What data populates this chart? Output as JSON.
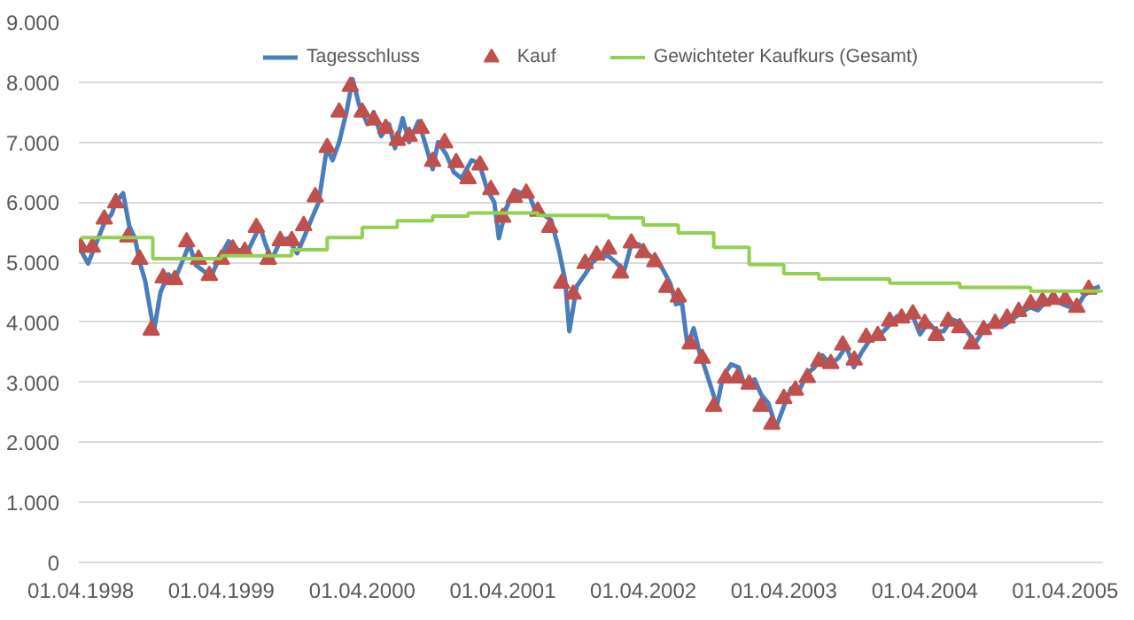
{
  "chart_data": {
    "type": "line",
    "xlim": [
      "1998-03-27",
      "2005-07-08"
    ],
    "xticks": [
      {
        "value": "1998-04-01",
        "label": "01.04.1998"
      },
      {
        "value": "1999-04-01",
        "label": "01.04.1999"
      },
      {
        "value": "2000-04-01",
        "label": "01.04.2000"
      },
      {
        "value": "2001-04-01",
        "label": "01.04.2001"
      },
      {
        "value": "2002-04-01",
        "label": "01.04.2002"
      },
      {
        "value": "2003-04-01",
        "label": "01.04.2003"
      },
      {
        "value": "2004-04-01",
        "label": "01.04.2004"
      },
      {
        "value": "2005-04-01",
        "label": "01.04.2005"
      }
    ],
    "ylim": [
      0,
      9000
    ],
    "yticks": [
      0,
      {
        "value": 1000,
        "label": "1.000"
      },
      {
        "value": 2000,
        "label": "2.000"
      },
      {
        "value": 3000,
        "label": "3.000"
      },
      {
        "value": 4000,
        "label": "4.000"
      },
      {
        "value": 5000,
        "label": "5.000"
      },
      {
        "value": 6000,
        "label": "6.000"
      },
      {
        "value": 7000,
        "label": "7.000"
      },
      {
        "value": 8000,
        "label": "8.000"
      },
      {
        "value": 9000,
        "label": "9.000"
      }
    ],
    "grid": "y",
    "legend": "top",
    "series": [
      {
        "name": "Tagesschluss",
        "color": "#4a7ebb",
        "x": [
          "1998-04-01",
          "1998-04-20",
          "1998-05-10",
          "1998-06-01",
          "1998-06-20",
          "1998-07-01",
          "1998-07-20",
          "1998-08-05",
          "1998-08-20",
          "1998-09-01",
          "1998-09-15",
          "1998-10-08",
          "1998-10-25",
          "1998-11-15",
          "1998-12-01",
          "1998-12-20",
          "1999-01-08",
          "1999-01-25",
          "1999-02-15",
          "1999-03-05",
          "1999-03-25",
          "1999-04-20",
          "1999-05-15",
          "1999-06-10",
          "1999-07-10",
          "1999-07-25",
          "1999-08-10",
          "1999-09-01",
          "1999-09-20",
          "1999-10-15",
          "1999-11-01",
          "1999-11-20",
          "1999-12-10",
          "1999-12-31",
          "2000-01-15",
          "2000-02-01",
          "2000-02-20",
          "2000-03-07",
          "2000-03-25",
          "2000-04-15",
          "2000-05-01",
          "2000-05-20",
          "2000-06-10",
          "2000-06-25",
          "2000-07-15",
          "2000-08-01",
          "2000-08-25",
          "2000-09-15",
          "2000-10-01",
          "2000-10-15",
          "2000-11-05",
          "2000-11-25",
          "2000-12-15",
          "2001-01-10",
          "2001-01-30",
          "2001-02-20",
          "2001-03-10",
          "2001-03-22",
          "2001-04-10",
          "2001-05-01",
          "2001-05-20",
          "2001-06-10",
          "2001-06-25",
          "2001-07-15",
          "2001-08-05",
          "2001-08-25",
          "2001-09-10",
          "2001-09-21",
          "2001-10-10",
          "2001-11-01",
          "2001-11-20",
          "2001-12-10",
          "2002-01-01",
          "2002-01-20",
          "2002-02-10",
          "2002-03-01",
          "2002-03-20",
          "2002-04-10",
          "2002-05-01",
          "2002-05-20",
          "2002-06-10",
          "2002-06-25",
          "2002-07-10",
          "2002-07-25",
          "2002-08-10",
          "2002-08-25",
          "2002-09-10",
          "2002-09-30",
          "2002-10-09",
          "2002-10-25",
          "2002-11-15",
          "2002-12-05",
          "2002-12-20",
          "2003-01-15",
          "2003-02-01",
          "2003-02-20",
          "2003-03-12",
          "2003-04-01",
          "2003-04-20",
          "2003-05-10",
          "2003-06-01",
          "2003-06-20",
          "2003-07-10",
          "2003-08-01",
          "2003-08-20",
          "2003-09-10",
          "2003-09-30",
          "2003-10-20",
          "2003-11-10",
          "2003-12-01",
          "2003-12-31",
          "2004-01-20",
          "2004-02-10",
          "2004-03-01",
          "2004-03-20",
          "2004-04-10",
          "2004-05-01",
          "2004-05-20",
          "2004-06-10",
          "2004-07-01",
          "2004-07-20",
          "2004-08-10",
          "2004-08-25",
          "2004-09-15",
          "2004-10-05",
          "2004-10-25",
          "2004-11-15",
          "2004-12-05",
          "2004-12-31",
          "2005-01-20",
          "2005-02-10",
          "2005-03-01",
          "2005-03-25",
          "2005-04-15",
          "2005-05-01",
          "2005-05-20",
          "2005-06-10",
          "2005-06-30"
        ],
        "values": [
          5200,
          4980,
          5300,
          5650,
          5800,
          6000,
          6150,
          5600,
          5400,
          5000,
          4700,
          3850,
          4500,
          4800,
          4700,
          5000,
          5300,
          4950,
          4850,
          4750,
          5050,
          5350,
          5200,
          5200,
          5600,
          5300,
          5050,
          5350,
          5400,
          5150,
          5400,
          5700,
          6000,
          6900,
          6700,
          7000,
          7500,
          8050,
          7600,
          7300,
          7500,
          7100,
          7300,
          6900,
          7400,
          7000,
          7350,
          6900,
          6550,
          7000,
          6800,
          6500,
          6400,
          6700,
          6650,
          6200,
          6000,
          5400,
          5900,
          6200,
          6150,
          6100,
          5850,
          5800,
          5700,
          5200,
          4700,
          3850,
          4600,
          4800,
          5000,
          5100,
          5100,
          5000,
          4850,
          5300,
          5300,
          5150,
          5050,
          4900,
          4650,
          4300,
          4350,
          3600,
          3900,
          3500,
          3200,
          2800,
          2600,
          3100,
          3300,
          3250,
          2950,
          3050,
          2800,
          2650,
          2250,
          2600,
          2900,
          2850,
          3150,
          3250,
          3450,
          3300,
          3400,
          3600,
          3250,
          3500,
          3700,
          3750,
          3950,
          4100,
          4050,
          4100,
          3800,
          4000,
          3850,
          3850,
          4050,
          4000,
          3850,
          3650,
          3800,
          3950,
          3950,
          3950,
          4050,
          4150,
          4250,
          4200,
          4350,
          4400,
          4300,
          4250,
          4250,
          4450,
          4550,
          4600
        ]
      },
      {
        "name": "Kauf",
        "type": "scatter",
        "marker": "triangle",
        "color": "#c0504d",
        "x": [
          "1998-04",
          "1998-05",
          "1998-06",
          "1998-07",
          "1998-08",
          "1998-09",
          "1998-10",
          "1998-11",
          "1998-12",
          "1999-01",
          "1999-02",
          "1999-03",
          "1999-04",
          "1999-05",
          "1999-06",
          "1999-07",
          "1999-08",
          "1999-09",
          "1999-10",
          "1999-11",
          "1999-12",
          "2000-01",
          "2000-02",
          "2000-03",
          "2000-04",
          "2000-05",
          "2000-06",
          "2000-07",
          "2000-08",
          "2000-09",
          "2000-10",
          "2000-11",
          "2000-12",
          "2001-01",
          "2001-02",
          "2001-03",
          "2001-04",
          "2001-05",
          "2001-06",
          "2001-07",
          "2001-08",
          "2001-09",
          "2001-10",
          "2001-11",
          "2001-12",
          "2002-01",
          "2002-02",
          "2002-03",
          "2002-04",
          "2002-05",
          "2002-06",
          "2002-07",
          "2002-08",
          "2002-09",
          "2002-10",
          "2002-11",
          "2002-12",
          "2003-01",
          "2003-02",
          "2003-03",
          "2003-04",
          "2003-05",
          "2003-06",
          "2003-07",
          "2003-08",
          "2003-09",
          "2003-10",
          "2003-11",
          "2003-12",
          "2004-01",
          "2004-02",
          "2004-03",
          "2004-04",
          "2004-05",
          "2004-06",
          "2004-07",
          "2004-08",
          "2004-09",
          "2004-10",
          "2004-11",
          "2004-12",
          "2005-01",
          "2005-02",
          "2005-03",
          "2005-04",
          "2005-05",
          "2005-06"
        ],
        "values": [
          5250,
          5250,
          5720,
          5990,
          5420,
          5050,
          3870,
          4740,
          4710,
          5340,
          5050,
          4780,
          5050,
          5220,
          5180,
          5580,
          5050,
          5360,
          5360,
          5610,
          6090,
          6910,
          7500,
          7930,
          7500,
          7370,
          7230,
          7030,
          7100,
          7230,
          6680,
          6990,
          6660,
          6390,
          6620,
          6210,
          5750,
          6080,
          6150,
          5850,
          5580,
          4650,
          4470,
          4980,
          5120,
          5220,
          4820,
          5320,
          5160,
          5010,
          4580,
          4420,
          3640,
          3400,
          2600,
          3070,
          3070,
          2970,
          2600,
          2300,
          2730,
          2870,
          3080,
          3350,
          3310,
          3620,
          3370,
          3750,
          3780,
          4020,
          4070,
          4140,
          3980,
          3780,
          4020,
          3910,
          3640,
          3880,
          3980,
          4070,
          4180,
          4310,
          4350,
          4380,
          4380,
          4250,
          4550
        ]
      },
      {
        "name": "Gewichteter Kaufkurs (Gesamt)",
        "type": "step",
        "color": "#92d050",
        "x": [
          "1998-04-01",
          "1998-10-05",
          "1999-04-01",
          "1999-10-01",
          "2000-01-01",
          "2000-04-01",
          "2000-07-01",
          "2000-10-01",
          "2001-01-01",
          "2001-07-01",
          "2002-01-01",
          "2002-04-01",
          "2002-07-01",
          "2002-10-01",
          "2003-01-01",
          "2003-04-01",
          "2003-07-01",
          "2004-01-01",
          "2004-07-01",
          "2005-01-01",
          "2005-07-05"
        ],
        "values": [
          5410,
          5060,
          5110,
          5210,
          5410,
          5580,
          5690,
          5770,
          5820,
          5780,
          5740,
          5620,
          5490,
          5250,
          4960,
          4810,
          4720,
          4650,
          4580,
          4520,
          4540
        ]
      }
    ]
  }
}
